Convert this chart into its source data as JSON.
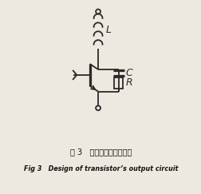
{
  "title_cn": "图 3   三极管输出电路设计",
  "title_en": "Fig 3   Design of transistor’s output circuit",
  "bg_color": "#ede9e0",
  "line_color": "#2a2a2a",
  "label_L": "L",
  "label_C": "C",
  "label_R": "R",
  "fig_width": 2.53,
  "fig_height": 2.43,
  "dpi": 100
}
